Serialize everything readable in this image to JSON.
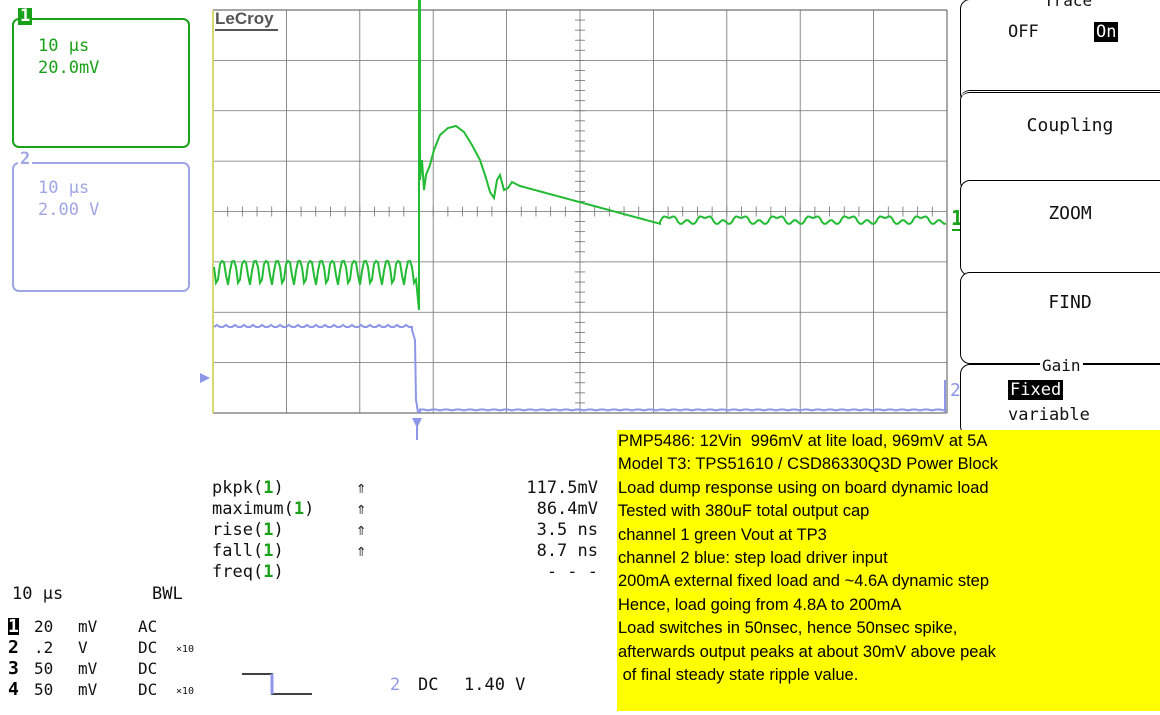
{
  "channels": [
    {
      "num": "1",
      "timebase": "10 µs",
      "scale": "20.0mV",
      "color": "#1aa11a"
    },
    {
      "num": "2",
      "timebase": "10 µs",
      "scale": "2.00 V",
      "color": "#9fa6e6"
    }
  ],
  "scope": {
    "brand": "LeCroy",
    "trace1_color": "#22bb33",
    "trace2_color": "#8e96e8",
    "grid_color": "#707070",
    "marker_ch1": "1",
    "marker_ch2": "2",
    "chart_data": {
      "type": "line",
      "x": {
        "divisions": 10,
        "per_div": "10 µs"
      },
      "y": {
        "divisions": 8
      },
      "series": [
        {
          "name": "1",
          "per_div": "20.0mV"
        },
        {
          "name": "2",
          "per_div": "2.00 V"
        }
      ]
    }
  },
  "menu": {
    "trace": {
      "title": "Trace",
      "off": "OFF",
      "on": "On"
    },
    "coupling": "Coupling",
    "zoom": "ZOOM",
    "find": "FIND",
    "gain": {
      "title": "Gain",
      "fixed": "Fixed",
      "variable": "variable"
    }
  },
  "measurements": [
    {
      "name": "pkpk",
      "ch": "1",
      "arrow": "⇑",
      "value": "117.5mV"
    },
    {
      "name": "maximum",
      "ch": "1",
      "arrow": "⇑",
      "value": "86.4mV"
    },
    {
      "name": "rise",
      "ch": "1",
      "arrow": "⇑",
      "value": "3.5 ns"
    },
    {
      "name": "fall",
      "ch": "1",
      "arrow": "⇑",
      "value": "8.7 ns"
    },
    {
      "name": "freq",
      "ch": "1",
      "arrow": "",
      "value": "- - -"
    }
  ],
  "timebase_footer": {
    "time": "10 µs",
    "bwl": "BWL"
  },
  "channel_settings": [
    {
      "num": "1",
      "volts": "20",
      "unit": "mV",
      "coupling": "AC",
      "probe": ""
    },
    {
      "num": "2",
      "volts": ".2",
      "unit": "V",
      "coupling": "DC",
      "probe": "×10"
    },
    {
      "num": "3",
      "volts": "50",
      "unit": "mV",
      "coupling": "DC",
      "probe": ""
    },
    {
      "num": "4",
      "volts": "50",
      "unit": "mV",
      "coupling": "DC",
      "probe": "×10"
    }
  ],
  "trigger": {
    "channel": "2",
    "coupling": "DC",
    "level": "1.40 V"
  },
  "note": [
    "PMP5486: 12Vin  996mV at lite load, 969mV at 5A",
    "Model T3: TPS51610 / CSD86330Q3D Power Block",
    "Load dump response using on board dynamic load",
    "Tested with 380uF total output cap",
    "channel 1 green Vout at TP3",
    "channel 2 blue: step load driver input",
    "200mA external fixed load and ~4.6A dynamic step",
    "Hence, load going from 4.8A to 200mA",
    "Load switches in 50nsec, hence 50nsec spike,",
    "afterwards output peaks at about 30mV above peak",
    " of final steady state ripple value."
  ],
  "note_color": "#ffff00"
}
